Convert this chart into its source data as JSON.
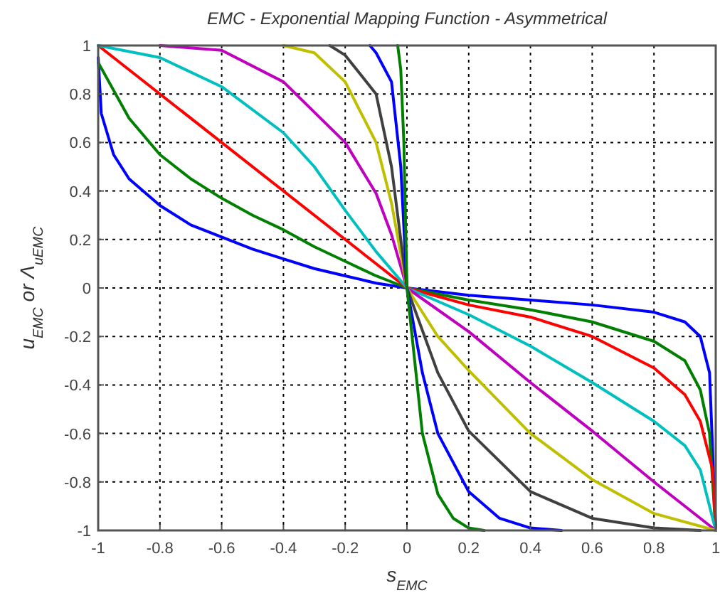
{
  "chart_data": {
    "type": "line",
    "title": "EMC - Exponential Mapping Function - Asymmetrical",
    "xlabel": "s$_{EMC}$",
    "ylabel": "u$_{EMC}$ or Λ$_{uEMC}$",
    "xlim": [
      -1,
      1
    ],
    "ylim": [
      -1,
      1
    ],
    "xticks": [
      -1,
      -0.8,
      -0.6,
      -0.4,
      -0.2,
      0,
      0.2,
      0.4,
      0.6,
      0.8,
      1
    ],
    "yticks": [
      -1,
      -0.8,
      -0.6,
      -0.4,
      -0.2,
      0,
      0.2,
      0.4,
      0.6,
      0.8,
      1
    ],
    "grid": true,
    "series": [
      {
        "color": "#0000ff",
        "x": [
          -1,
          -0.99,
          -0.95,
          -0.9,
          -0.8,
          -0.7,
          -0.6,
          -0.5,
          -0.4,
          -0.3,
          -0.2,
          -0.1,
          0,
          0.2,
          0.4,
          0.6,
          0.8,
          0.9,
          0.95,
          0.98,
          1
        ],
        "values": [
          0.95,
          0.72,
          0.55,
          0.45,
          0.34,
          0.26,
          0.21,
          0.16,
          0.12,
          0.08,
          0.05,
          0.02,
          0,
          -0.03,
          -0.05,
          -0.07,
          -0.1,
          -0.14,
          -0.2,
          -0.35,
          -1
        ]
      },
      {
        "color": "#007f00",
        "x": [
          -1,
          -0.9,
          -0.8,
          -0.7,
          -0.6,
          -0.5,
          -0.4,
          -0.3,
          -0.2,
          -0.1,
          0,
          0.2,
          0.4,
          0.6,
          0.8,
          0.9,
          0.95,
          0.98,
          1
        ],
        "values": [
          0.93,
          0.7,
          0.55,
          0.45,
          0.37,
          0.3,
          0.24,
          0.17,
          0.11,
          0.05,
          0,
          -0.05,
          -0.09,
          -0.14,
          -0.22,
          -0.3,
          -0.42,
          -0.6,
          -1
        ]
      },
      {
        "color": "#ff0000",
        "x": [
          -1,
          0,
          0.2,
          0.4,
          0.6,
          0.8,
          0.9,
          0.95,
          0.99,
          1
        ],
        "values": [
          1,
          0,
          -0.07,
          -0.12,
          -0.2,
          -0.33,
          -0.44,
          -0.55,
          -0.75,
          -1
        ]
      },
      {
        "color": "#00bfbf",
        "x": [
          -1,
          -0.8,
          -0.6,
          -0.4,
          -0.3,
          -0.2,
          -0.1,
          0,
          0.2,
          0.4,
          0.6,
          0.8,
          0.9,
          0.95,
          1
        ],
        "values": [
          1,
          0.95,
          0.83,
          0.64,
          0.5,
          0.32,
          0.15,
          0,
          -0.11,
          -0.24,
          -0.39,
          -0.55,
          -0.65,
          -0.75,
          -1
        ]
      },
      {
        "color": "#bf00bf",
        "x": [
          -0.8,
          -0.6,
          -0.4,
          -0.2,
          -0.1,
          -0.05,
          0,
          0.2,
          0.4,
          0.6,
          0.8,
          1
        ],
        "values": [
          1,
          0.98,
          0.85,
          0.6,
          0.39,
          0.22,
          0,
          -0.18,
          -0.39,
          -0.59,
          -0.8,
          -1
        ]
      },
      {
        "color": "#bfbf00",
        "x": [
          -0.4,
          -0.3,
          -0.2,
          -0.1,
          -0.05,
          0,
          0.1,
          0.2,
          0.4,
          0.6,
          0.8,
          1
        ],
        "values": [
          1,
          0.97,
          0.85,
          0.6,
          0.35,
          0,
          -0.2,
          -0.34,
          -0.6,
          -0.79,
          -0.93,
          -1
        ]
      },
      {
        "color": "#404040",
        "x": [
          -0.25,
          -0.2,
          -0.1,
          -0.05,
          0,
          0.1,
          0.2,
          0.4,
          0.6,
          0.8,
          0.95
        ],
        "values": [
          1,
          0.96,
          0.8,
          0.5,
          0,
          -0.35,
          -0.59,
          -0.84,
          -0.95,
          -0.99,
          -1
        ]
      },
      {
        "color": "#0000ff",
        "x": [
          -0.12,
          -0.1,
          -0.05,
          -0.02,
          0,
          0.05,
          0.1,
          0.2,
          0.3,
          0.4,
          0.5
        ],
        "values": [
          1,
          0.97,
          0.85,
          0.5,
          0,
          -0.35,
          -0.6,
          -0.84,
          -0.95,
          -0.99,
          -1
        ]
      },
      {
        "color": "#007f00",
        "x": [
          -0.03,
          -0.02,
          -0.01,
          0,
          0.05,
          0.1,
          0.15,
          0.2,
          0.25
        ],
        "values": [
          1,
          0.9,
          0.6,
          0,
          -0.6,
          -0.85,
          -0.95,
          -0.99,
          -1
        ]
      }
    ]
  }
}
